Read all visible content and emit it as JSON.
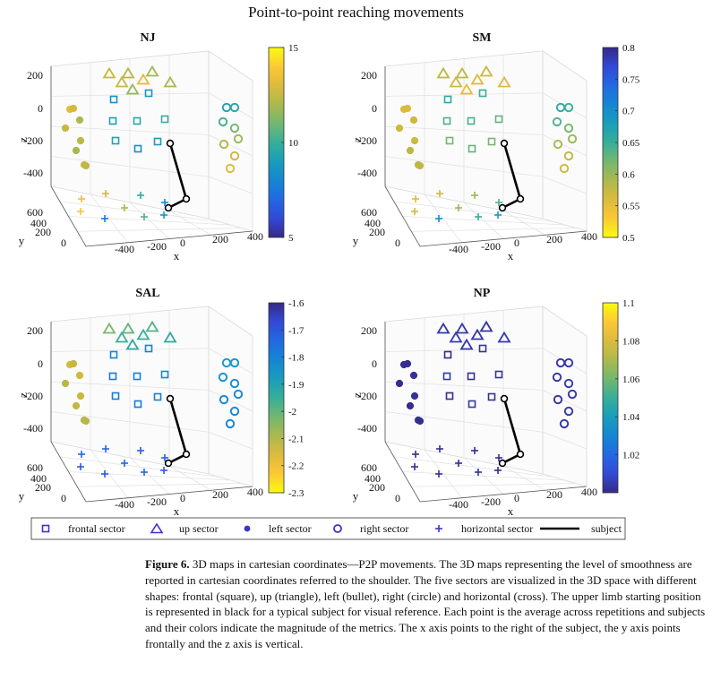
{
  "figure": {
    "title": "Point-to-point reaching movements",
    "caption_label": "Figure 6.",
    "caption_text": "3D maps in cartesian coordinates—P2P movements. The 3D maps representing the level of smoothness are reported in cartesian coordinates referred to the shoulder. The five sectors are visualized in the 3D space with different shapes: frontal (square), up (triangle), left (bullet), right (circle) and horizontal (cross). The upper limb starting position is represented in black for a typical subject for visual reference. Each point is the average across repetitions and subjects and their colors indicate the magnitude of the metrics. The x axis points to the right of the subject, the y axis points frontally and the z axis is vertical.",
    "legend": [
      {
        "label": "frontal sector",
        "icon": "square"
      },
      {
        "label": "up sector",
        "icon": "triangle"
      },
      {
        "label": "left sector",
        "icon": "bullet"
      },
      {
        "label": "right sector",
        "icon": "circle"
      },
      {
        "label": "horizontal sector",
        "icon": "cross"
      },
      {
        "label": "subject",
        "icon": "line"
      }
    ],
    "colors": {
      "legend_marker": "#3b35c8",
      "subject_line": "#000000",
      "grid": "#e6e6e6",
      "axis": "#555555"
    }
  },
  "chart_data": [
    {
      "type": "scatter3d",
      "title": "NJ",
      "xlabel": "x",
      "ylabel": "y",
      "zlabel": "z",
      "x_ticks": [
        "-400",
        "-200",
        "0",
        "200",
        "400"
      ],
      "y_ticks": [
        "600",
        "400",
        "200",
        "0"
      ],
      "z_ticks": [
        "200",
        "0",
        "-200",
        "-400"
      ],
      "colorbar": {
        "min": 5,
        "max": 15,
        "ticks": [
          "15",
          "10",
          "5"
        ],
        "colormap": "parula"
      },
      "sectors": {
        "frontal": [
          8.5,
          8.7,
          9.2,
          9.6,
          10.0,
          9.3,
          8.4,
          9.0
        ],
        "up": [
          12.5,
          12.2,
          11.8,
          12.6,
          13.2,
          12.0,
          11.6
        ],
        "left": [
          13.2,
          12.8,
          12.0,
          12.5,
          12.3,
          11.9,
          12.6,
          12.4
        ],
        "right": [
          9.2,
          9.5,
          10.2,
          11.0,
          11.6,
          12.2,
          12.6,
          13.0
        ],
        "horizontal": [
          13.5,
          12.8,
          9.8,
          8.2,
          13.8,
          12.0,
          10.5,
          8.8,
          7.5
        ]
      }
    },
    {
      "type": "scatter3d",
      "title": "SM",
      "xlabel": "x",
      "ylabel": "y",
      "zlabel": "z",
      "x_ticks": [
        "-400",
        "-200",
        "0",
        "200",
        "400"
      ],
      "y_ticks": [
        "600",
        "400",
        "200",
        "0"
      ],
      "z_ticks": [
        "200",
        "0",
        "-200",
        "-400"
      ],
      "colorbar": {
        "min": 0.5,
        "max": 0.8,
        "ticks": [
          "0.8",
          "0.75",
          "0.7",
          "0.65",
          "0.6",
          "0.55",
          "0.5"
        ],
        "colormap": "parula_reversed"
      },
      "sectors": {
        "frontal": [
          0.66,
          0.65,
          0.64,
          0.64,
          0.63,
          0.62,
          0.63,
          0.62
        ],
        "up": [
          0.58,
          0.58,
          0.57,
          0.57,
          0.56,
          0.56,
          0.55
        ],
        "left": [
          0.56,
          0.56,
          0.57,
          0.57,
          0.57,
          0.58,
          0.58,
          0.58
        ],
        "right": [
          0.66,
          0.65,
          0.64,
          0.62,
          0.6,
          0.59,
          0.58,
          0.57
        ],
        "horizontal": [
          0.56,
          0.57,
          0.6,
          0.64,
          0.57,
          0.6,
          0.65,
          0.68,
          0.7
        ]
      }
    },
    {
      "type": "scatter3d",
      "title": "SAL",
      "xlabel": "x",
      "ylabel": "y",
      "zlabel": "z",
      "x_ticks": [
        "-400",
        "-200",
        "0",
        "200",
        "400"
      ],
      "y_ticks": [
        "600",
        "400",
        "200",
        "0"
      ],
      "z_ticks": [
        "200",
        "0",
        "-200",
        "-400"
      ],
      "colorbar": {
        "min": -2.3,
        "max": -1.6,
        "ticks": [
          "-1.6",
          "-1.7",
          "-1.8",
          "-1.9",
          "-2",
          "-2.1",
          "-2.2",
          "-2.3"
        ],
        "colormap": "parula_reversed"
      },
      "sectors": {
        "frontal": [
          -1.8,
          -1.79,
          -1.78,
          -1.8,
          -1.81,
          -1.79,
          -1.78,
          -1.8
        ],
        "up": [
          -2.03,
          -2.0,
          -1.98,
          -1.96,
          -1.95,
          -1.94,
          -1.93
        ],
        "left": [
          -2.15,
          -2.12,
          -2.14,
          -2.11,
          -2.13,
          -2.12,
          -2.1,
          -2.11
        ],
        "right": [
          -1.86,
          -1.85,
          -1.84,
          -1.83,
          -1.82,
          -1.82,
          -1.81,
          -1.8
        ],
        "horizontal": [
          -1.74,
          -1.73,
          -1.72,
          -1.72,
          -1.71,
          -1.72,
          -1.73,
          -1.71,
          -1.7
        ]
      }
    },
    {
      "type": "scatter3d",
      "title": "NP",
      "xlabel": "x",
      "ylabel": "y",
      "zlabel": "z",
      "x_ticks": [
        "-400",
        "-200",
        "0",
        "200",
        "400"
      ],
      "y_ticks": [
        "600",
        "400",
        "200",
        "0"
      ],
      "z_ticks": [
        "200",
        "0",
        "-200",
        "-400"
      ],
      "colorbar": {
        "min": 1.0,
        "max": 1.1,
        "ticks": [
          "1.1",
          "1.08",
          "1.06",
          "1.04",
          "1.02"
        ],
        "colormap": "parula"
      },
      "sectors": {
        "frontal": [
          1.0,
          1.002,
          1.004,
          1.002,
          1.003,
          1.001,
          1.004,
          1.002
        ],
        "up": [
          1.004,
          1.005,
          1.003,
          1.006,
          1.004,
          1.005,
          1.004
        ],
        "left": [
          1.001,
          1.001,
          1.002,
          1.001,
          1.002,
          1.001,
          1.002,
          1.001
        ],
        "right": [
          1.003,
          1.004,
          1.003,
          1.005,
          1.004,
          1.003,
          1.004,
          1.003
        ],
        "horizontal": [
          1.001,
          1.002,
          1.001,
          1.002,
          1.002,
          1.001,
          1.002,
          1.001,
          1.002
        ]
      }
    }
  ]
}
